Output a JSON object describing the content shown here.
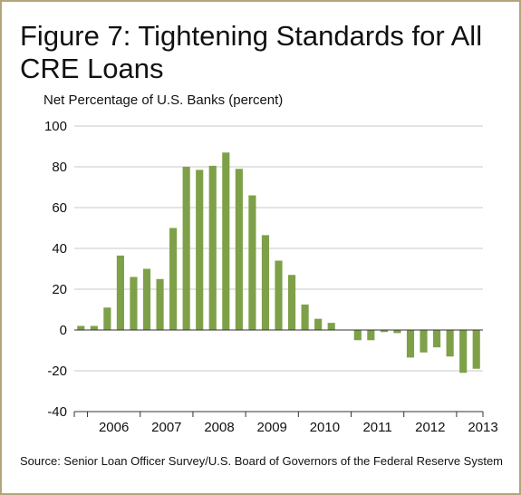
{
  "figure": {
    "title": "Figure 7: Tightening Standards for All CRE Loans",
    "source": "Source: Senior Loan Officer Survey/U.S. Board of Governors of the Federal Reserve System"
  },
  "colors": {
    "bar": "#7ea048",
    "grid": "#c8c8c8",
    "axis": "#333333",
    "border": "#b3a57a"
  },
  "chart_data": {
    "type": "bar",
    "title": "Figure 7: Tightening Standards for All CRE Loans",
    "ylabel": "Net Percentage of U.S. Banks (percent)",
    "xlabel": "",
    "ylim": [
      -40,
      100
    ],
    "yticks": [
      100,
      80,
      60,
      40,
      20,
      0,
      -20,
      -40
    ],
    "grid": true,
    "legend": "none",
    "year_labels": [
      "2006",
      "2007",
      "2008",
      "2009",
      "2010",
      "2011",
      "2012",
      "2013"
    ],
    "quarters_per_year": 4,
    "categories": [
      "2005 Q4",
      "2006 Q1",
      "2006 Q2",
      "2006 Q3",
      "2006 Q4",
      "2007 Q1",
      "2007 Q2",
      "2007 Q3",
      "2007 Q4",
      "2008 Q1",
      "2008 Q2",
      "2008 Q3",
      "2008 Q4",
      "2009 Q1",
      "2009 Q2",
      "2009 Q3",
      "2009 Q4",
      "2010 Q1",
      "2010 Q2",
      "2010 Q3",
      "2010 Q4",
      "2011 Q1",
      "2011 Q2",
      "2011 Q3",
      "2011 Q4",
      "2012 Q1",
      "2012 Q2",
      "2012 Q3",
      "2012 Q4",
      "2013 Q1",
      "2013 Q2"
    ],
    "values": [
      2,
      2,
      11,
      36.5,
      26,
      30,
      25,
      50,
      80,
      78.5,
      80.5,
      87,
      79,
      66,
      46.5,
      34,
      27,
      12.5,
      5.5,
      3.5,
      0,
      -5,
      -5,
      -1,
      -1.5,
      -13.5,
      -11,
      -8.5,
      -13,
      -21,
      -19
    ]
  }
}
